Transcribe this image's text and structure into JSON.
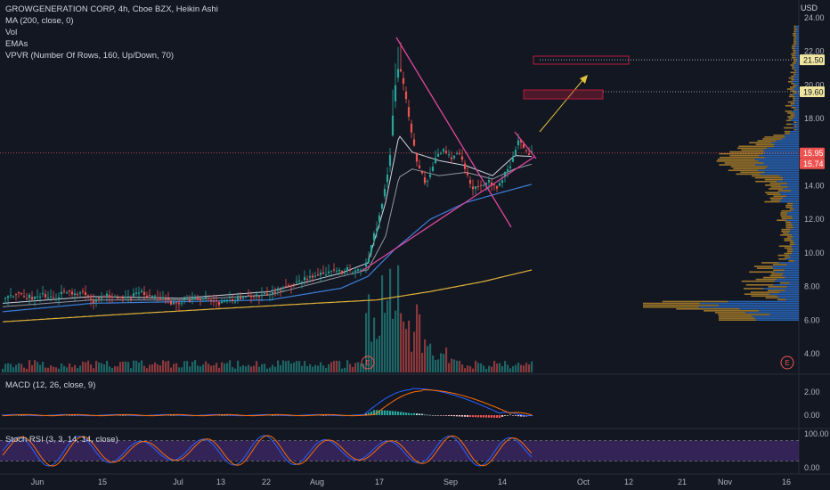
{
  "legend": {
    "title": "GROWGENERATION CORP, 4h, Cboe BZX, Heikin Ashi",
    "ma": "MA (200, close, 0)",
    "vol": "Vol",
    "emas": "EMAs",
    "vpvr": "VPVR (Number Of Rows, 160, Up/Down, 70)"
  },
  "currency": "USD",
  "colors": {
    "background": "#131722",
    "up": "#26a69a",
    "down": "#ef5350",
    "ma200": "#e0b23a",
    "ema_fast": "#d1d4dc",
    "ema_mid": "#9598a1",
    "ema_slow": "#3d7fd9",
    "trendline": "#e0479e",
    "projection": "#e0c23a",
    "target_box": "#b71c3c",
    "macd": "#2962ff",
    "signal": "#ff6d00",
    "stoch_k": "#2962ff",
    "stoch_d": "#ff6d00",
    "stoch_band": "#4a2b7a"
  },
  "price_axis": {
    "ticks": [
      "24.00",
      "22.00",
      "20.00",
      "18.00",
      "16.00",
      "14.00",
      "12.00",
      "10.00",
      "8.00",
      "6.00",
      "4.00"
    ],
    "badges": [
      {
        "value": "21.50",
        "kind": "target"
      },
      {
        "value": "19.60",
        "kind": "target"
      },
      {
        "value": "15.95",
        "kind": "last"
      },
      {
        "value": "15.74",
        "kind": "ema"
      }
    ]
  },
  "macd": {
    "label": "MACD (12, 26, close, 9)",
    "ticks": [
      "2.00",
      "0.00"
    ]
  },
  "stoch": {
    "label": "Stoch RSI (3, 3, 14, 14, close)",
    "ticks": [
      "100.00",
      "0.00"
    ]
  },
  "time_axis": {
    "labels": [
      "Jun",
      "15",
      "Jul",
      "13",
      "22",
      "Aug",
      "17",
      "Sep",
      "14",
      "Oct",
      "12",
      "21",
      "Nov",
      "16"
    ]
  },
  "earnings": [
    "E",
    "E"
  ],
  "chart_data": {
    "type": "candlestick",
    "title": "GROWGENERATION CORP, 4h, Cboe BZX, Heikin Ashi",
    "ylim": [
      3.0,
      24.5
    ],
    "y_scale": "linear",
    "last_price": 15.95,
    "ema_last": 15.74,
    "target_levels": [
      19.6,
      21.5
    ],
    "close_path": [
      [
        0,
        7.2
      ],
      [
        10,
        7.5
      ],
      [
        20,
        7.6
      ],
      [
        35,
        7.2
      ],
      [
        45,
        7.5
      ],
      [
        60,
        7.4
      ],
      [
        70,
        7.8
      ],
      [
        80,
        7.6
      ],
      [
        88,
        7.7
      ],
      [
        95,
        7.3
      ],
      [
        105,
        7.1
      ],
      [
        115,
        7.4
      ],
      [
        125,
        7.5
      ],
      [
        135,
        7.2
      ],
      [
        145,
        7.4
      ],
      [
        155,
        7.6
      ],
      [
        165,
        7.5
      ],
      [
        175,
        7.3
      ],
      [
        185,
        7.1
      ],
      [
        195,
        7.0
      ],
      [
        205,
        7.2
      ],
      [
        215,
        7.2
      ],
      [
        225,
        7.3
      ],
      [
        235,
        7.2
      ],
      [
        245,
        7.0
      ],
      [
        255,
        7.2
      ],
      [
        265,
        7.3
      ],
      [
        275,
        7.5
      ],
      [
        285,
        7.4
      ],
      [
        295,
        7.6
      ],
      [
        305,
        7.7
      ],
      [
        315,
        7.8
      ],
      [
        325,
        8.0
      ],
      [
        335,
        8.3
      ],
      [
        345,
        8.6
      ],
      [
        355,
        8.7
      ],
      [
        365,
        8.9
      ],
      [
        375,
        8.8
      ],
      [
        385,
        9.0
      ],
      [
        395,
        8.9
      ],
      [
        405,
        9.0
      ],
      [
        410,
        9.5
      ],
      [
        415,
        10.8
      ],
      [
        420,
        11.5
      ],
      [
        425,
        12.6
      ],
      [
        430,
        14.0
      ],
      [
        435,
        16.0
      ],
      [
        440,
        19.5
      ],
      [
        445,
        21.2
      ],
      [
        450,
        20.0
      ],
      [
        455,
        18.5
      ],
      [
        460,
        17.0
      ],
      [
        465,
        15.5
      ],
      [
        470,
        14.8
      ],
      [
        475,
        14.0
      ],
      [
        480,
        14.6
      ],
      [
        485,
        15.5
      ],
      [
        490,
        15.8
      ],
      [
        495,
        16.2
      ],
      [
        500,
        15.9
      ],
      [
        505,
        15.6
      ],
      [
        510,
        15.8
      ],
      [
        515,
        15.7
      ],
      [
        520,
        15.0
      ],
      [
        525,
        14.2
      ],
      [
        530,
        13.8
      ],
      [
        535,
        13.9
      ],
      [
        540,
        14.1
      ],
      [
        545,
        14.5
      ],
      [
        550,
        14.0
      ],
      [
        555,
        13.8
      ],
      [
        560,
        14.3
      ],
      [
        565,
        14.8
      ],
      [
        570,
        15.3
      ],
      [
        575,
        16.0
      ],
      [
        580,
        16.8
      ],
      [
        585,
        16.3
      ],
      [
        590,
        15.8
      ],
      [
        595,
        15.95
      ]
    ],
    "ma200_path": [
      [
        0,
        5.9
      ],
      [
        120,
        6.3
      ],
      [
        250,
        6.7
      ],
      [
        350,
        7.0
      ],
      [
        420,
        7.2
      ],
      [
        480,
        7.7
      ],
      [
        540,
        8.3
      ],
      [
        595,
        9.0
      ]
    ],
    "ema_slow_path": [
      [
        0,
        6.5
      ],
      [
        100,
        7.0
      ],
      [
        200,
        7.1
      ],
      [
        300,
        7.2
      ],
      [
        380,
        7.9
      ],
      [
        410,
        8.6
      ],
      [
        440,
        10.2
      ],
      [
        480,
        12.0
      ],
      [
        520,
        13.0
      ],
      [
        560,
        13.6
      ],
      [
        595,
        14.1
      ]
    ],
    "ema_mid_path": [
      [
        0,
        6.8
      ],
      [
        100,
        7.2
      ],
      [
        200,
        7.2
      ],
      [
        300,
        7.5
      ],
      [
        380,
        8.6
      ],
      [
        410,
        9.0
      ],
      [
        430,
        11.0
      ],
      [
        445,
        14.5
      ],
      [
        460,
        15.0
      ],
      [
        490,
        14.6
      ],
      [
        520,
        14.8
      ],
      [
        550,
        14.4
      ],
      [
        575,
        15.0
      ],
      [
        595,
        15.3
      ]
    ],
    "ema_fast_path": [
      [
        0,
        7.0
      ],
      [
        100,
        7.4
      ],
      [
        200,
        7.3
      ],
      [
        300,
        7.7
      ],
      [
        380,
        8.8
      ],
      [
        410,
        9.4
      ],
      [
        430,
        13.0
      ],
      [
        445,
        17.0
      ],
      [
        460,
        16.0
      ],
      [
        490,
        15.5
      ],
      [
        520,
        15.2
      ],
      [
        550,
        14.6
      ],
      [
        575,
        15.8
      ],
      [
        595,
        15.74
      ]
    ],
    "volume_profile_note": "VPVR histogram on right edge",
    "macd_range": [
      -1.0,
      3.0
    ],
    "stoch_range": [
      0,
      100
    ]
  }
}
